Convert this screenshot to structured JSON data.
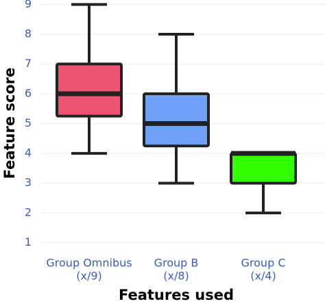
{
  "chart_data": {
    "type": "box",
    "x_label": "Features used",
    "y_label": "Feature score",
    "categories": [
      [
        "Group Omnibus",
        "(x/9)"
      ],
      [
        "Group B",
        "(x/8)"
      ],
      [
        "Group C",
        "(x/4)"
      ]
    ],
    "series": [
      {
        "name": "Group Omnibus",
        "color": "#ee5470",
        "min": 4,
        "q1": 5.25,
        "median": 6,
        "q3": 7,
        "max": 9
      },
      {
        "name": "Group B",
        "color": "#6fa1f6",
        "min": 3,
        "q1": 4.25,
        "median": 5,
        "q3": 6,
        "max": 8
      },
      {
        "name": "Group C",
        "color": "#33ff00",
        "min": 2,
        "q1": 3,
        "median": 4,
        "q3": 4,
        "max": 4
      }
    ],
    "ylim": [
      0.6,
      9.15
    ],
    "yticks": [
      1,
      2,
      3,
      4,
      5,
      6,
      7,
      8,
      9
    ],
    "grid": true
  }
}
